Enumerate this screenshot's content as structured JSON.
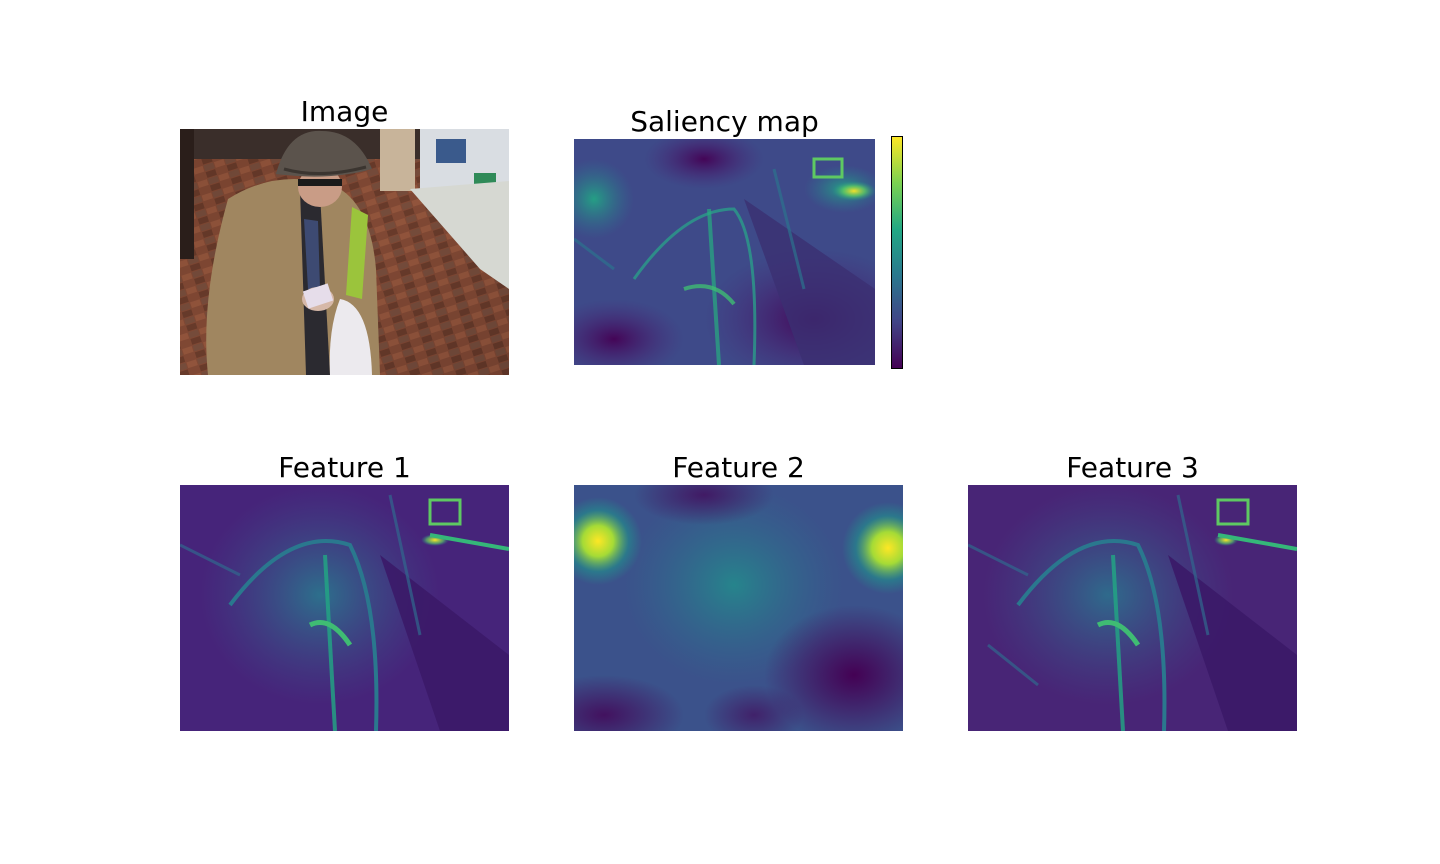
{
  "figure": {
    "panels": [
      {
        "id": "image",
        "title": "Image"
      },
      {
        "id": "saliency",
        "title": "Saliency map"
      },
      {
        "id": "feature1",
        "title": "Feature 1"
      },
      {
        "id": "feature2",
        "title": "Feature 2"
      },
      {
        "id": "feature3",
        "title": "Feature 3"
      }
    ]
  },
  "chart_data": {
    "type": "heatmap",
    "colormap": "viridis",
    "colorbar": {
      "ticks": "none",
      "colors": [
        "#440154",
        "#3b528b",
        "#21918c",
        "#5ec962",
        "#fde725"
      ]
    },
    "axes": "off",
    "panels": [
      "Image",
      "Saliency map",
      "Feature 1",
      "Feature 2",
      "Feature 3"
    ]
  }
}
